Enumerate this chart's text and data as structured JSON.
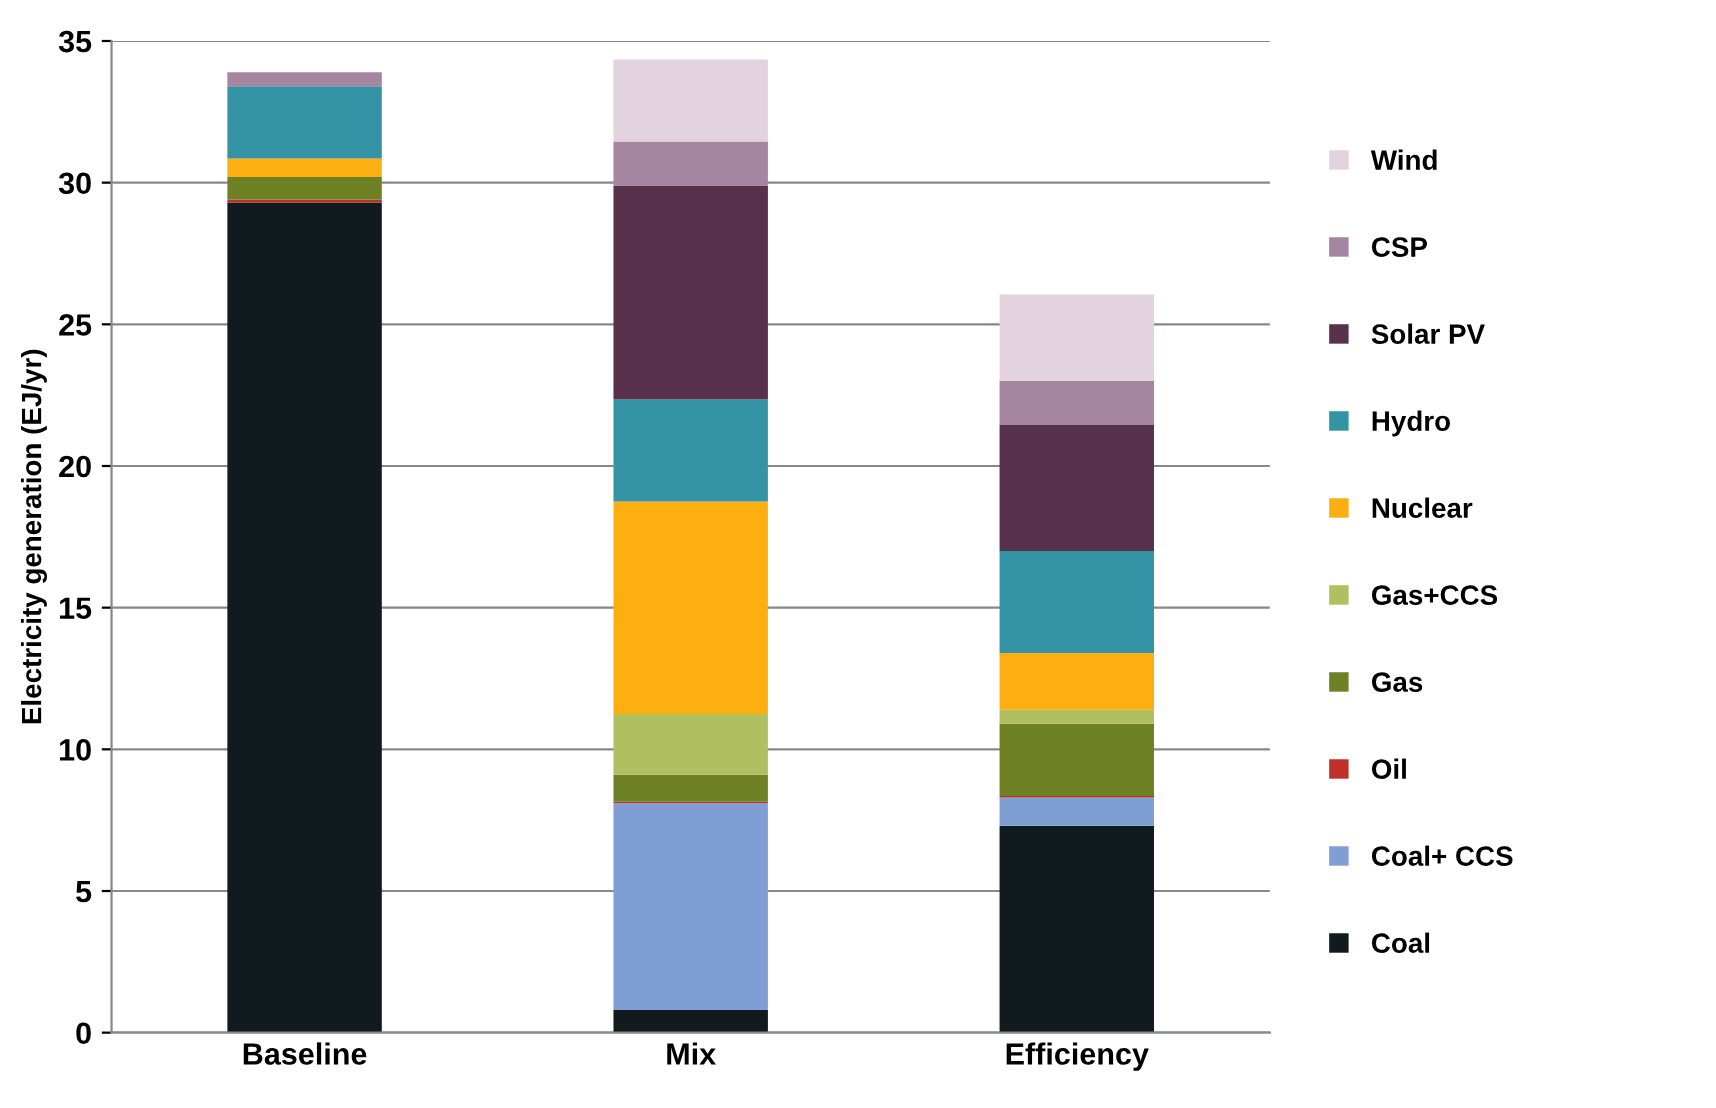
{
  "chart_data": {
    "type": "bar",
    "stacked": true,
    "ylabel": "Electricity generation (EJ/yr)",
    "categories": [
      "Baseline",
      "Mix",
      "Efficiency"
    ],
    "series": [
      {
        "name": "Coal",
        "color": "#111a1e",
        "values": [
          29.3,
          0.8,
          7.3
        ]
      },
      {
        "name": "Coal+ CCS",
        "color": "#7f9fd4",
        "values": [
          0,
          7.3,
          1.0
        ]
      },
      {
        "name": "Oil",
        "color": "#c0302a",
        "values": [
          0.1,
          0.05,
          0.05
        ]
      },
      {
        "name": "Gas",
        "color": "#6f8125",
        "values": [
          0.8,
          0.95,
          2.55
        ]
      },
      {
        "name": "Gas+CCS",
        "color": "#b0c060",
        "values": [
          0,
          2.15,
          0.5
        ]
      },
      {
        "name": "Nuclear",
        "color": "#fdaf12",
        "values": [
          0.65,
          7.5,
          2.0
        ]
      },
      {
        "name": "Hydro",
        "color": "#3593a6",
        "values": [
          2.55,
          3.6,
          3.6
        ]
      },
      {
        "name": "Solar PV",
        "color": "#58314d",
        "values": [
          0,
          7.55,
          4.45
        ]
      },
      {
        "name": "CSP",
        "color": "#a585a0",
        "values": [
          0.5,
          1.55,
          1.55
        ]
      },
      {
        "name": "Wind",
        "color": "#e3d3e0",
        "values": [
          0,
          2.9,
          3.05
        ]
      }
    ],
    "ylim": [
      0,
      35
    ],
    "yticks": [
      0,
      5,
      10,
      15,
      20,
      25,
      30,
      35
    ],
    "grid": "y",
    "legend": "right"
  }
}
